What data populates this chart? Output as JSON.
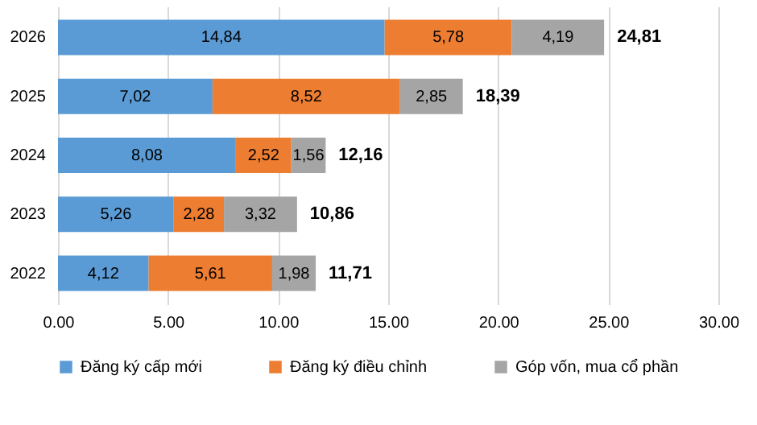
{
  "chart_data": {
    "type": "bar",
    "orientation": "horizontal",
    "stacked": true,
    "categories": [
      "2026",
      "2025",
      "2024",
      "2023",
      "2022"
    ],
    "series": [
      {
        "name": "Đăng ký cấp mới",
        "color": "#5b9bd5",
        "values": [
          14.84,
          7.02,
          8.08,
          5.26,
          4.12
        ],
        "value_labels": [
          "14,84",
          "7,02",
          "8,08",
          "5,26",
          "4,12"
        ]
      },
      {
        "name": "Đăng ký điều chỉnh",
        "color": "#ed7d31",
        "values": [
          5.78,
          8.52,
          2.52,
          2.28,
          5.61
        ],
        "value_labels": [
          "5,78",
          "8,52",
          "2,52",
          "2,28",
          "5,61"
        ]
      },
      {
        "name": "Góp vốn, mua cổ phần",
        "color": "#a5a5a5",
        "values": [
          4.19,
          2.85,
          1.56,
          3.32,
          1.98
        ],
        "value_labels": [
          "4,19",
          "2,85",
          "1,56",
          "3,32",
          "1,98"
        ]
      }
    ],
    "totals": [
      "24,81",
      "18,39",
      "12,16",
      "10,86",
      "11,71"
    ],
    "xlim": [
      0,
      30
    ],
    "xticks": [
      {
        "value": 0,
        "label": "0.00"
      },
      {
        "value": 5,
        "label": "5.00"
      },
      {
        "value": 10,
        "label": "10.00"
      },
      {
        "value": 15,
        "label": "15.00"
      },
      {
        "value": 20,
        "label": "20.00"
      },
      {
        "value": 25,
        "label": "25.00"
      },
      {
        "value": 30,
        "label": "30.00"
      }
    ],
    "grid": "x",
    "legend": "bottom"
  }
}
